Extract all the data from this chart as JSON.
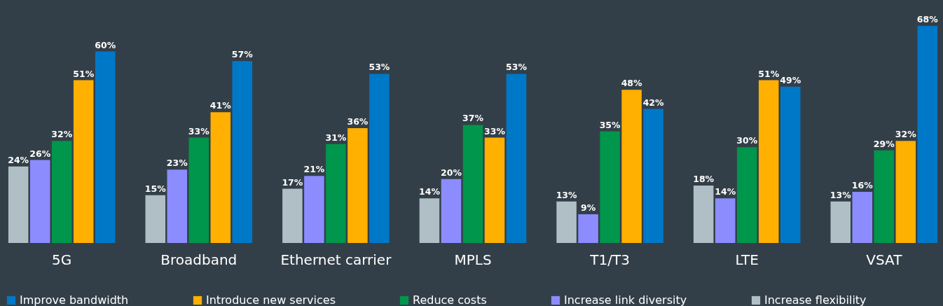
{
  "chart_data": {
    "type": "bar",
    "categories": [
      "5G",
      "Broadband",
      "Ethernet carrier",
      "MPLS",
      "T1/T3",
      "LTE",
      "VSAT"
    ],
    "series": [
      {
        "name": "Improve bandwidth",
        "color": "#0078c8",
        "values": [
          60,
          57,
          53,
          53,
          42,
          49,
          68
        ],
        "value_labels": [
          "60%",
          "57%",
          "53%",
          "53%",
          "42%",
          "49%",
          "68%"
        ]
      },
      {
        "name": "Introduce new services",
        "color": "#ffb000",
        "values": [
          51,
          41,
          36,
          33,
          48,
          51,
          32
        ],
        "value_labels": [
          "51%",
          "41%",
          "36%",
          "33%",
          "48%",
          "51%",
          "32%"
        ]
      },
      {
        "name": "Reduce costs",
        "color": "#00964b",
        "values": [
          32,
          33,
          31,
          37,
          35,
          30,
          29
        ],
        "value_labels": [
          "32%",
          "33%",
          "31%",
          "37%",
          "35%",
          "30%",
          "29%"
        ]
      },
      {
        "name": "Increase link diversity",
        "color": "#8c8cff",
        "values": [
          26,
          23,
          21,
          20,
          9,
          14,
          16
        ],
        "value_labels": [
          "26%",
          "23%",
          "21%",
          "20%",
          "9%",
          "14%",
          "16%"
        ]
      },
      {
        "name": "Increase flexibility",
        "color": "#b0bec5",
        "values": [
          24,
          15,
          17,
          14,
          13,
          18,
          13
        ],
        "value_labels": [
          "24%",
          "15%",
          "17%",
          "14%",
          "13%",
          "18%",
          "13%"
        ]
      }
    ],
    "legend": "bottom",
    "grid": false
  }
}
